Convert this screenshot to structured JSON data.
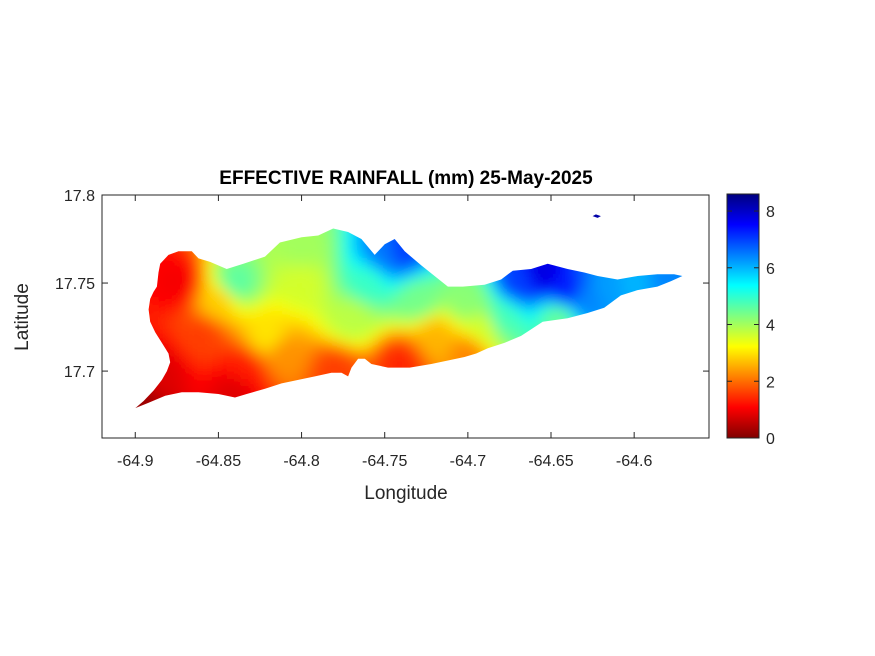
{
  "chart_data": {
    "type": "heatmap",
    "title": "EFFECTIVE RAINFALL (mm) 25-May-2025",
    "xlabel": "Longitude",
    "ylabel": "Latitude",
    "xlim": [
      -64.92,
      -64.555
    ],
    "ylim": [
      17.662,
      17.8
    ],
    "x_ticks": [
      -64.9,
      -64.85,
      -64.8,
      -64.75,
      -64.7,
      -64.65,
      -64.6
    ],
    "x_tick_labels": [
      "-64.9",
      "-64.85",
      "-64.8",
      "-64.75",
      "-64.7",
      "-64.65",
      "-64.6"
    ],
    "y_ticks": [
      17.7,
      17.75,
      17.8
    ],
    "y_tick_labels": [
      "17.7",
      "17.75",
      "17.8"
    ],
    "colorbar": {
      "colormap": "jet",
      "clim": [
        0,
        8.6
      ],
      "ticks": [
        0,
        2,
        4,
        6,
        8
      ],
      "tick_labels": [
        "0",
        "2",
        "4",
        "6",
        "8"
      ],
      "colors": [
        "#800000",
        "#ff0000",
        "#ffff00",
        "#00ffff",
        "#0000ff",
        "#000080"
      ]
    },
    "grid": false,
    "island_outline": [
      [
        -64.9,
        17.679
      ],
      [
        -64.895,
        17.683
      ],
      [
        -64.889,
        17.689
      ],
      [
        -64.884,
        17.695
      ],
      [
        -64.881,
        17.7
      ],
      [
        -64.879,
        17.705
      ],
      [
        -64.88,
        17.71
      ],
      [
        -64.884,
        17.716
      ],
      [
        -64.888,
        17.722
      ],
      [
        -64.891,
        17.728
      ],
      [
        -64.892,
        17.735
      ],
      [
        -64.891,
        17.741
      ],
      [
        -64.889,
        17.745
      ],
      [
        -64.887,
        17.748
      ],
      [
        -64.886,
        17.756
      ],
      [
        -64.885,
        17.761
      ],
      [
        -64.88,
        17.766
      ],
      [
        -64.874,
        17.768
      ],
      [
        -64.866,
        17.768
      ],
      [
        -64.862,
        17.764
      ],
      [
        -64.855,
        17.762
      ],
      [
        -64.845,
        17.758
      ],
      [
        -64.835,
        17.761
      ],
      [
        -64.822,
        17.765
      ],
      [
        -64.813,
        17.773
      ],
      [
        -64.8,
        17.776
      ],
      [
        -64.79,
        17.777
      ],
      [
        -64.781,
        17.781
      ],
      [
        -64.772,
        17.779
      ],
      [
        -64.764,
        17.775
      ],
      [
        -64.756,
        17.766
      ],
      [
        -64.75,
        17.772
      ],
      [
        -64.744,
        17.775
      ],
      [
        -64.738,
        17.768
      ],
      [
        -64.728,
        17.76
      ],
      [
        -64.72,
        17.754
      ],
      [
        -64.712,
        17.748
      ],
      [
        -64.703,
        17.748
      ],
      [
        -64.69,
        17.749
      ],
      [
        -64.68,
        17.752
      ],
      [
        -64.673,
        17.757
      ],
      [
        -64.662,
        17.758
      ],
      [
        -64.652,
        17.761
      ],
      [
        -64.64,
        17.758
      ],
      [
        -64.63,
        17.756
      ],
      [
        -64.622,
        17.754
      ],
      [
        -64.61,
        17.752
      ],
      [
        -64.598,
        17.754
      ],
      [
        -64.586,
        17.755
      ],
      [
        -64.576,
        17.755
      ],
      [
        -64.571,
        17.754
      ],
      [
        -64.578,
        17.751
      ],
      [
        -64.586,
        17.748
      ],
      [
        -64.598,
        17.746
      ],
      [
        -64.608,
        17.743
      ],
      [
        -64.618,
        17.736
      ],
      [
        -64.628,
        17.733
      ],
      [
        -64.64,
        17.73
      ],
      [
        -64.655,
        17.728
      ],
      [
        -64.668,
        17.72
      ],
      [
        -64.678,
        17.716
      ],
      [
        -64.688,
        17.713
      ],
      [
        -64.695,
        17.71
      ],
      [
        -64.702,
        17.708
      ],
      [
        -64.712,
        17.706
      ],
      [
        -64.722,
        17.704
      ],
      [
        -64.735,
        17.702
      ],
      [
        -64.748,
        17.702
      ],
      [
        -64.758,
        17.704
      ],
      [
        -64.762,
        17.707
      ],
      [
        -64.766,
        17.707
      ],
      [
        -64.77,
        17.702
      ],
      [
        -64.772,
        17.697
      ],
      [
        -64.776,
        17.699
      ],
      [
        -64.782,
        17.699
      ],
      [
        -64.792,
        17.697
      ],
      [
        -64.802,
        17.695
      ],
      [
        -64.812,
        17.693
      ],
      [
        -64.822,
        17.69
      ],
      [
        -64.833,
        17.687
      ],
      [
        -64.84,
        17.685
      ],
      [
        -64.85,
        17.687
      ],
      [
        -64.862,
        17.688
      ],
      [
        -64.872,
        17.688
      ],
      [
        -64.882,
        17.686
      ],
      [
        -64.892,
        17.682
      ],
      [
        -64.9,
        17.679
      ]
    ],
    "islet_outline": [
      [
        -64.625,
        17.788
      ],
      [
        -64.622,
        17.787
      ],
      [
        -64.62,
        17.788
      ],
      [
        -64.623,
        17.789
      ]
    ],
    "rainfall_samples": [
      {
        "lon": -64.9,
        "lat": 17.68,
        "value": 0.2
      },
      {
        "lon": -64.885,
        "lat": 17.7,
        "value": 0.8
      },
      {
        "lon": -64.875,
        "lat": 17.75,
        "value": 1.0
      },
      {
        "lon": -64.86,
        "lat": 17.72,
        "value": 1.6
      },
      {
        "lon": -64.84,
        "lat": 17.69,
        "value": 0.8
      },
      {
        "lon": -64.835,
        "lat": 17.7,
        "value": 1.3
      },
      {
        "lon": -64.85,
        "lat": 17.74,
        "value": 2.8
      },
      {
        "lon": -64.84,
        "lat": 17.75,
        "value": 4.6
      },
      {
        "lon": -64.82,
        "lat": 17.72,
        "value": 3.0
      },
      {
        "lon": -64.81,
        "lat": 17.71,
        "value": 2.3
      },
      {
        "lon": -64.8,
        "lat": 17.75,
        "value": 3.6
      },
      {
        "lon": -64.8,
        "lat": 17.77,
        "value": 4.0
      },
      {
        "lon": -64.78,
        "lat": 17.7,
        "value": 1.6
      },
      {
        "lon": -64.77,
        "lat": 17.73,
        "value": 3.8
      },
      {
        "lon": -64.76,
        "lat": 17.75,
        "value": 4.9
      },
      {
        "lon": -64.75,
        "lat": 17.765,
        "value": 6.5
      },
      {
        "lon": -64.74,
        "lat": 17.768,
        "value": 7.0
      },
      {
        "lon": -64.73,
        "lat": 17.74,
        "value": 4.4
      },
      {
        "lon": -64.72,
        "lat": 17.72,
        "value": 2.6
      },
      {
        "lon": -64.74,
        "lat": 17.705,
        "value": 1.4
      },
      {
        "lon": -64.7,
        "lat": 17.71,
        "value": 2.2
      },
      {
        "lon": -64.7,
        "lat": 17.74,
        "value": 4.2
      },
      {
        "lon": -64.69,
        "lat": 17.725,
        "value": 3.6
      },
      {
        "lon": -64.68,
        "lat": 17.73,
        "value": 4.8
      },
      {
        "lon": -64.67,
        "lat": 17.75,
        "value": 7.0
      },
      {
        "lon": -64.655,
        "lat": 17.755,
        "value": 7.8
      },
      {
        "lon": -64.64,
        "lat": 17.745,
        "value": 7.3
      },
      {
        "lon": -64.645,
        "lat": 17.73,
        "value": 4.5
      },
      {
        "lon": -64.63,
        "lat": 17.74,
        "value": 6.4
      },
      {
        "lon": -64.615,
        "lat": 17.748,
        "value": 6.2
      },
      {
        "lon": -64.6,
        "lat": 17.75,
        "value": 6.0
      },
      {
        "lon": -64.58,
        "lat": 17.753,
        "value": 6.4
      },
      {
        "lon": -64.623,
        "lat": 17.788,
        "value": 8.5
      }
    ]
  }
}
